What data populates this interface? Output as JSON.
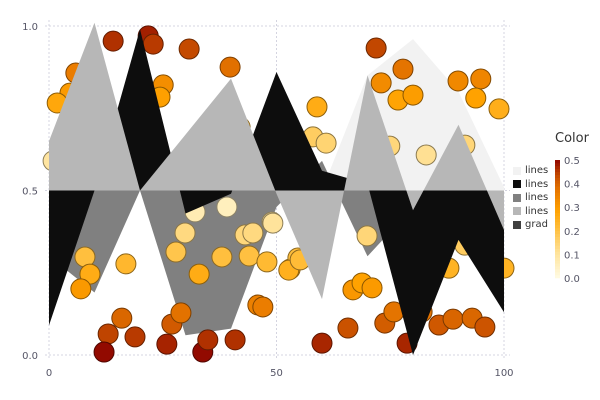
{
  "chart_data": {
    "type": "area",
    "fillrange": 0.5,
    "xlim": [
      0,
      100
    ],
    "ylim": [
      0,
      1
    ],
    "xticks": [
      {
        "value": 0,
        "label": "0"
      },
      {
        "value": 50,
        "label": "50"
      },
      {
        "value": 100,
        "label": "100"
      }
    ],
    "yticks": [
      {
        "value": 0,
        "label": "0.0"
      },
      {
        "value": 0.5,
        "label": "0.5"
      },
      {
        "value": 1,
        "label": "1.0"
      }
    ],
    "grid": true,
    "legend_placement": "right",
    "x": [
      0,
      10,
      20,
      30,
      40,
      50,
      60,
      70,
      80,
      90,
      100
    ],
    "series": [
      {
        "name": "lines",
        "color": "#f2f2f2",
        "values": [
          0.5,
          0.5,
          0.5,
          0.5,
          0.5,
          0.5,
          0.5,
          0.85,
          0.96,
          0.8,
          0.51
        ]
      },
      {
        "name": "lines",
        "color": "#0d0d0d",
        "values": [
          0.09,
          0.5,
          0.99,
          0.43,
          0.49,
          0.86,
          0.56,
          0.52,
          0.0,
          0.35,
          0.13
        ]
      },
      {
        "name": "lines",
        "color": "#808080",
        "values": [
          0.3,
          0.19,
          0.5,
          0.06,
          0.08,
          0.45,
          0.59,
          0.3,
          0.45,
          0.45,
          0.45
        ]
      },
      {
        "name": "lines",
        "color": "#b7b7b7",
        "values": [
          0.65,
          1.01,
          0.5,
          0.67,
          0.84,
          0.49,
          0.17,
          0.85,
          0.44,
          0.7,
          0.38
        ]
      }
    ],
    "scatter": {
      "name": "grad",
      "legend_color": "#404040",
      "points": [
        [
          14.1,
          0.954
        ],
        [
          21.8,
          0.97
        ],
        [
          22.9,
          0.945
        ],
        [
          30.8,
          0.93
        ],
        [
          39.8,
          0.875
        ],
        [
          5.9,
          0.857
        ],
        [
          4.6,
          0.796
        ],
        [
          1.8,
          0.766
        ],
        [
          25.1,
          0.821
        ],
        [
          24.4,
          0.784
        ],
        [
          0.9,
          0.59
        ],
        [
          42.0,
          0.693
        ],
        [
          7.9,
          0.298
        ],
        [
          9.0,
          0.246
        ],
        [
          7.0,
          0.201
        ],
        [
          16.9,
          0.277
        ],
        [
          16.0,
          0.112
        ],
        [
          13.0,
          0.064
        ],
        [
          12.1,
          0.009
        ],
        [
          18.9,
          0.055
        ],
        [
          25.9,
          0.033
        ],
        [
          27.0,
          0.094
        ],
        [
          29.0,
          0.128
        ],
        [
          33.8,
          0.009
        ],
        [
          34.9,
          0.046
        ],
        [
          40.9,
          0.046
        ],
        [
          29.9,
          0.371
        ],
        [
          27.9,
          0.313
        ],
        [
          33.0,
          0.246
        ],
        [
          38.0,
          0.298
        ],
        [
          44.0,
          0.301
        ],
        [
          43.1,
          0.365
        ],
        [
          44.8,
          0.371
        ],
        [
          47.9,
          0.283
        ],
        [
          49.0,
          0.404
        ],
        [
          53.0,
          0.261
        ],
        [
          32.1,
          0.435
        ],
        [
          39.1,
          0.45
        ],
        [
          45.9,
          0.152
        ],
        [
          47.0,
          0.146
        ],
        [
          54.7,
          0.295
        ],
        [
          71.9,
          0.933
        ],
        [
          77.8,
          0.869
        ],
        [
          73.0,
          0.827
        ],
        [
          76.7,
          0.775
        ],
        [
          80.0,
          0.79
        ],
        [
          89.9,
          0.833
        ],
        [
          94.9,
          0.839
        ],
        [
          93.8,
          0.781
        ],
        [
          98.9,
          0.748
        ],
        [
          58.9,
          0.754
        ],
        [
          58.0,
          0.663
        ],
        [
          60.9,
          0.644
        ],
        [
          82.9,
          0.608
        ],
        [
          74.9,
          0.635
        ],
        [
          91.4,
          0.638
        ],
        [
          69.9,
          0.362
        ],
        [
          66.8,
          0.198
        ],
        [
          68.8,
          0.219
        ],
        [
          71.0,
          0.204
        ],
        [
          65.7,
          0.082
        ],
        [
          60.0,
          0.036
        ],
        [
          73.8,
          0.097
        ],
        [
          75.8,
          0.131
        ],
        [
          78.7,
          0.036
        ],
        [
          82.0,
          0.131
        ],
        [
          85.7,
          0.091
        ],
        [
          88.8,
          0.109
        ],
        [
          93.0,
          0.112
        ],
        [
          95.8,
          0.085
        ],
        [
          87.9,
          0.264
        ],
        [
          91.4,
          0.334
        ],
        [
          100.0,
          0.264
        ],
        [
          52.7,
          0.258
        ],
        [
          55.2,
          0.289
        ],
        [
          49.2,
          0.401
        ]
      ]
    },
    "colorbar": {
      "title": "Color",
      "range": [
        0,
        0.5
      ],
      "ticks": [
        "0.0",
        "0.1",
        "0.2",
        "0.3",
        "0.4",
        "0.5"
      ],
      "colormap": [
        [
          0,
          "#fffae0"
        ],
        [
          0.1,
          "#ffe39a"
        ],
        [
          0.2,
          "#ffc040"
        ],
        [
          0.28,
          "#ffa200"
        ],
        [
          0.36,
          "#e97a00"
        ],
        [
          0.43,
          "#c44a00"
        ],
        [
          0.5,
          "#8b0000"
        ]
      ]
    }
  },
  "legend": [
    {
      "label": "lines",
      "color": "#f2f2f2"
    },
    {
      "label": "lines",
      "color": "#0d0d0d"
    },
    {
      "label": "lines",
      "color": "#808080"
    },
    {
      "label": "lines",
      "color": "#b7b7b7"
    },
    {
      "label": "grad",
      "color": "#404040"
    }
  ]
}
